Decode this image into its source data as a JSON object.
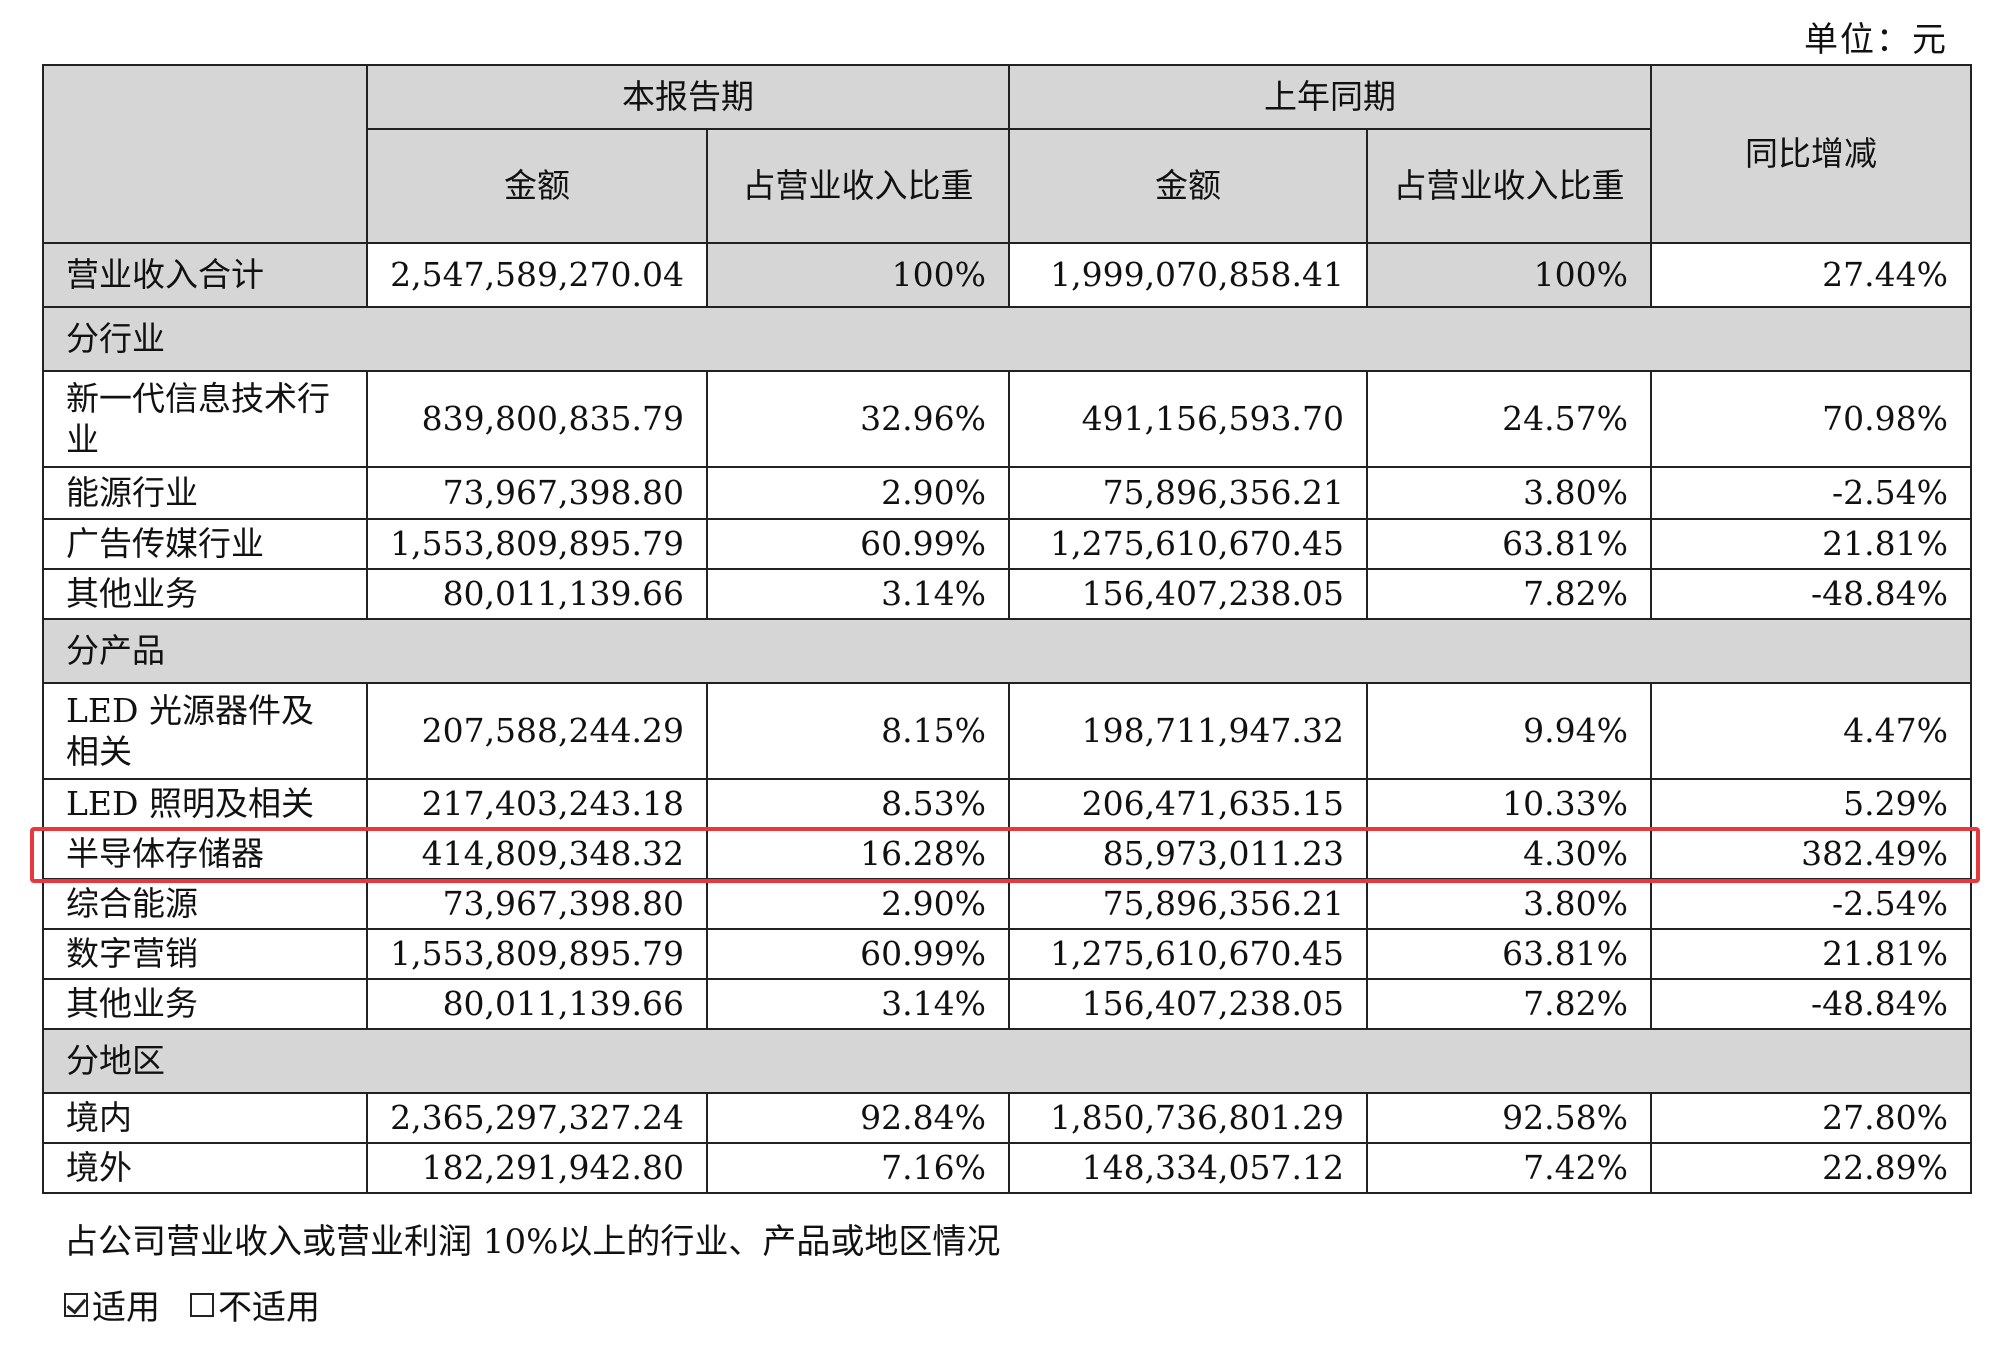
{
  "unit_label": "单位：元",
  "header": {
    "current_period": "本报告期",
    "prior_period": "上年同期",
    "amount": "金额",
    "share": "占营业收入比重",
    "share_wrapped": "占营业收入比重",
    "yoy": "同比增减"
  },
  "total": {
    "label": "营业收入合计",
    "cur_amount": "2,547,589,270.04",
    "cur_share": "100%",
    "prev_amount": "1,999,070,858.41",
    "prev_share": "100%",
    "yoy": "27.44%"
  },
  "sections": [
    {
      "title": "分行业",
      "rows": [
        {
          "label": "新一代信息技术行业",
          "cur_amount": "839,800,835.79",
          "cur_share": "32.96%",
          "prev_amount": "491,156,593.70",
          "prev_share": "24.57%",
          "yoy": "70.98%"
        },
        {
          "label": "能源行业",
          "cur_amount": "73,967,398.80",
          "cur_share": "2.90%",
          "prev_amount": "75,896,356.21",
          "prev_share": "3.80%",
          "yoy": "-2.54%"
        },
        {
          "label": "广告传媒行业",
          "cur_amount": "1,553,809,895.79",
          "cur_share": "60.99%",
          "prev_amount": "1,275,610,670.45",
          "prev_share": "63.81%",
          "yoy": "21.81%"
        },
        {
          "label": "其他业务",
          "cur_amount": "80,011,139.66",
          "cur_share": "3.14%",
          "prev_amount": "156,407,238.05",
          "prev_share": "7.82%",
          "yoy": "-48.84%"
        }
      ]
    },
    {
      "title": "分产品",
      "rows": [
        {
          "label": "LED 光源器件及相关",
          "cur_amount": "207,588,244.29",
          "cur_share": "8.15%",
          "prev_amount": "198,711,947.32",
          "prev_share": "9.94%",
          "yoy": "4.47%"
        },
        {
          "label": "LED 照明及相关",
          "cur_amount": "217,403,243.18",
          "cur_share": "8.53%",
          "prev_amount": "206,471,635.15",
          "prev_share": "10.33%",
          "yoy": "5.29%"
        },
        {
          "label": "半导体存储器",
          "cur_amount": "414,809,348.32",
          "cur_share": "16.28%",
          "prev_amount": "85,973,011.23",
          "prev_share": "4.30%",
          "yoy": "382.49%"
        },
        {
          "label": "综合能源",
          "cur_amount": "73,967,398.80",
          "cur_share": "2.90%",
          "prev_amount": "75,896,356.21",
          "prev_share": "3.80%",
          "yoy": "-2.54%"
        },
        {
          "label": "数字营销",
          "cur_amount": "1,553,809,895.79",
          "cur_share": "60.99%",
          "prev_amount": "1,275,610,670.45",
          "prev_share": "63.81%",
          "yoy": "21.81%"
        },
        {
          "label": "其他业务",
          "cur_amount": "80,011,139.66",
          "cur_share": "3.14%",
          "prev_amount": "156,407,238.05",
          "prev_share": "7.82%",
          "yoy": "-48.84%"
        }
      ]
    },
    {
      "title": "分地区",
      "rows": [
        {
          "label": "境内",
          "cur_amount": "2,365,297,327.24",
          "cur_share": "92.84%",
          "prev_amount": "1,850,736,801.29",
          "prev_share": "92.58%",
          "yoy": "27.80%"
        },
        {
          "label": "境外",
          "cur_amount": "182,291,942.80",
          "cur_share": "7.16%",
          "prev_amount": "148,334,057.12",
          "prev_share": "7.42%",
          "yoy": "22.89%"
        }
      ]
    }
  ],
  "note": "占公司营业收入或营业利润 10%以上的行业、产品或地区情况",
  "applicability": {
    "applicable": "适用",
    "not_applicable": "不适用",
    "selected": "适用"
  },
  "highlight_color": "#e8383d"
}
